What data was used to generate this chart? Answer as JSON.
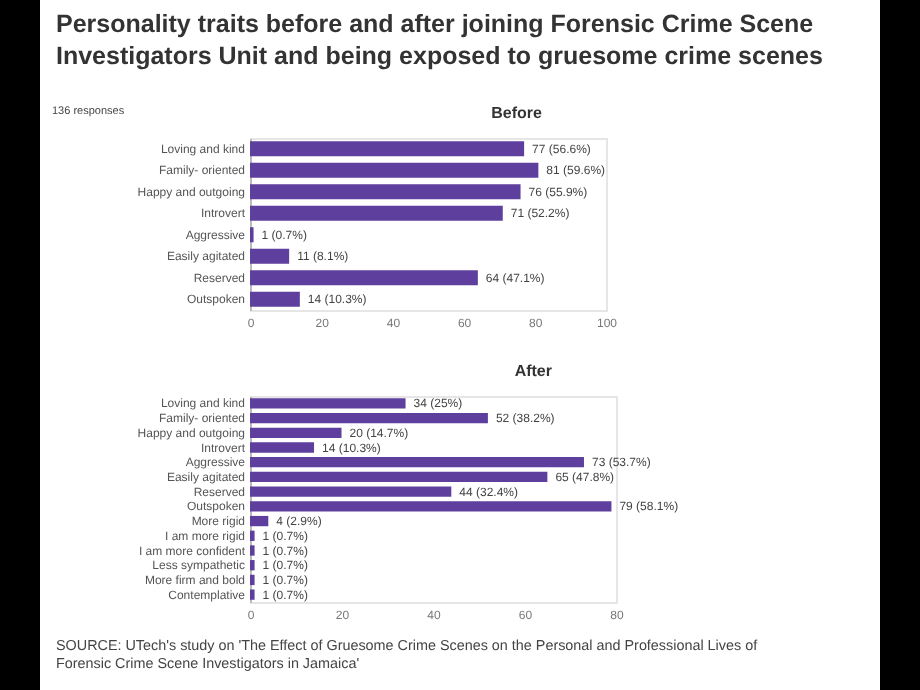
{
  "chart_data": [
    {
      "type": "bar",
      "orientation": "horizontal",
      "title": "Personality traits before and after joining Forensic Crime Scene Investigators Unit and being exposed to gruesome crime scenes",
      "subtitle": "Before",
      "annotations": [
        "136 responses"
      ],
      "categories": [
        "Loving and kind",
        "Family- oriented",
        "Happy and outgoing",
        "Introvert",
        "Aggressive",
        "Easily agitated",
        "Reserved",
        "Outspoken"
      ],
      "values": [
        77,
        81,
        76,
        71,
        1,
        11,
        64,
        14
      ],
      "value_labels": [
        "77 (56.6%)",
        "81 (59.6%)",
        "76 (55.9%)",
        "71 (52.2%)",
        "1 (0.7%)",
        "11 (8.1%)",
        "64 (47.1%)",
        "14 (10.3%)"
      ],
      "color": "#5e3f9e",
      "xlim": [
        0,
        100
      ],
      "xticks": [
        0,
        20,
        40,
        60,
        80,
        100
      ]
    },
    {
      "type": "bar",
      "orientation": "horizontal",
      "title": "After",
      "annotations": [
        "SOURCE: UTech's study on 'The Effect of Gruesome Crime Scenes on the Personal and Professional Lives of Forensic Crime Scene Investigators in Jamaica'"
      ],
      "categories": [
        "Loving and kind",
        "Family- oriented",
        "Happy and outgoing",
        "Introvert",
        "Aggressive",
        "Easily agitated",
        "Reserved",
        "Outspoken",
        "More rigid",
        "I am more rigid",
        "I am more confident",
        "Less sympathetic",
        "More firm and bold",
        "Contemplative"
      ],
      "values": [
        34,
        52,
        20,
        14,
        73,
        65,
        44,
        79,
        4,
        1,
        1,
        1,
        1,
        1
      ],
      "value_labels": [
        "34 (25%)",
        "52 (38.2%)",
        "20 (14.7%)",
        "14 (10.3%)",
        "73 (53.7%)",
        "65 (47.8%)",
        "44 (32.4%)",
        "79 (58.1%)",
        "4 (2.9%)",
        "1 (0.7%)",
        "1 (0.7%)",
        "1 (0.7%)",
        "1 (0.7%)",
        "1 (0.7%)"
      ],
      "color": "#5e3f9e",
      "xlim": [
        0,
        80
      ],
      "xticks": [
        0,
        20,
        40,
        60,
        80
      ]
    }
  ]
}
